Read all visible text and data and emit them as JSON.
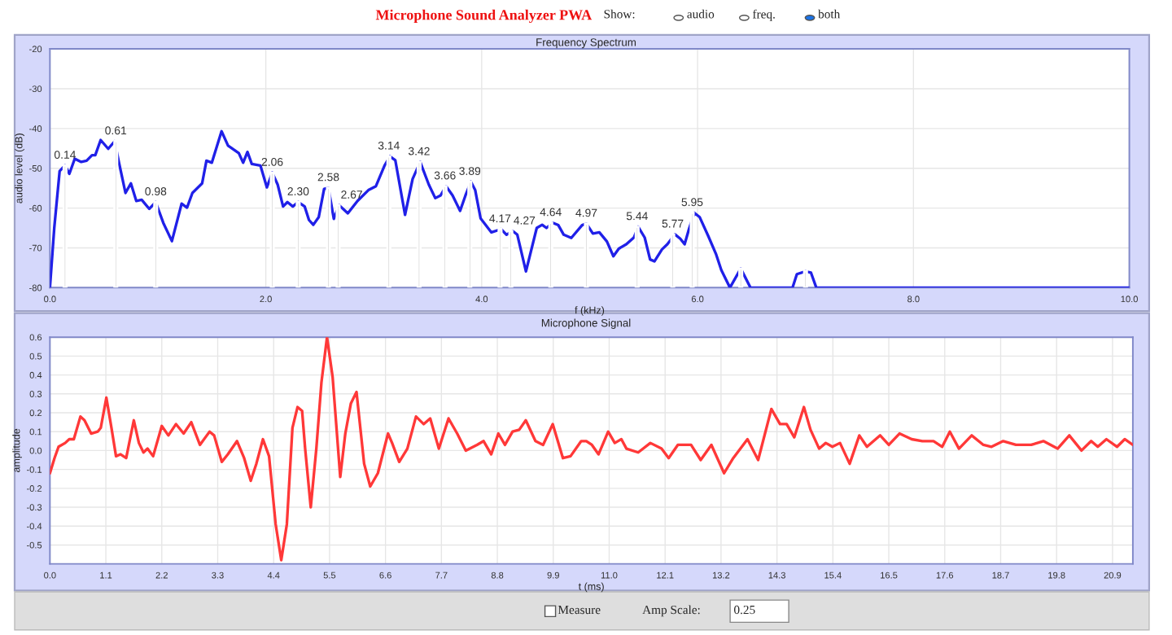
{
  "chart_data": [
    {
      "type": "line",
      "title": "Frequency Spectrum",
      "xlabel": "f (kHz)",
      "ylabel": "audio level (dB)",
      "grid": true,
      "annotations": [
        "Microphone Sound Analyzer PWA",
        "Show:",
        "audio",
        "freq.",
        "both",
        {
          "text": "0.14",
          "x": 0.14,
          "y": -49.3
        },
        {
          "text": "0.61",
          "x": 0.61,
          "y": -43.2
        },
        {
          "text": "0.98",
          "x": 0.98,
          "y": -58.5
        },
        {
          "text": "2.06",
          "x": 2.06,
          "y": -51.1
        },
        {
          "text": "2.30",
          "x": 2.3,
          "y": -58.5
        },
        {
          "text": "2.58",
          "x": 2.58,
          "y": -54.9
        },
        {
          "text": "2.67",
          "x": 2.67,
          "y": -59.3
        },
        {
          "text": "3.14",
          "x": 3.14,
          "y": -47
        },
        {
          "text": "3.42",
          "x": 3.42,
          "y": -48.4
        },
        {
          "text": "3.66",
          "x": 3.66,
          "y": -54.5
        },
        {
          "text": "3.89",
          "x": 3.89,
          "y": -53.4
        },
        {
          "text": "4.17",
          "x": 4.17,
          "y": -65.3
        },
        {
          "text": "4.27",
          "x": 4.27,
          "y": -65.8
        },
        {
          "text": "4.64",
          "x": 4.64,
          "y": -63.7
        },
        {
          "text": "4.97",
          "x": 4.97,
          "y": -63.9
        },
        {
          "text": "5.44",
          "x": 5.44,
          "y": -64.7
        },
        {
          "text": "5.77",
          "x": 5.77,
          "y": -66.6
        },
        {
          "text": "5.95",
          "x": 5.95,
          "y": -61.2
        }
      ],
      "xlim": [
        0,
        10
      ],
      "xticks": [
        {
          "value": 0,
          "label": "0.0"
        },
        {
          "value": 2,
          "label": "2.0"
        },
        {
          "value": 4,
          "label": "4.0"
        },
        {
          "value": 6,
          "label": "6.0"
        },
        {
          "value": 8,
          "label": "8.0"
        },
        {
          "value": 10,
          "label": "10.0"
        }
      ],
      "ylim": [
        -80,
        -20
      ],
      "yticks": [
        -80,
        -70,
        -60,
        -50,
        -40,
        -30,
        -20
      ],
      "series": [
        {
          "type": "bar",
          "color": "#c8c8c8",
          "x": [
            0.14,
            0.61,
            0.98,
            2.06,
            2.3,
            2.58,
            2.67,
            3.14,
            3.42,
            3.66,
            3.89,
            4.17,
            4.27,
            4.64,
            4.97,
            5.44,
            5.77,
            5.95,
            6.4,
            7.0
          ],
          "base": [
            -80,
            -80,
            -80,
            -80,
            -80,
            -80,
            -80,
            -80,
            -80,
            -80,
            -80,
            -80,
            -80,
            -80,
            -80,
            -80,
            -80,
            -80,
            -80,
            -80
          ],
          "values": [
            30.7,
            36.8,
            21.5,
            28.9,
            21.5,
            25.1,
            20.7,
            33,
            31.6,
            25.5,
            26.6,
            14.7,
            14.2,
            16.3,
            16.1,
            15.3,
            13.4,
            18.8,
            4.8,
            4.1
          ]
        },
        {
          "color": "#2020e8",
          "x": [
            0,
            0.04,
            0.09,
            0.14,
            0.18,
            0.23,
            0.29,
            0.34,
            0.39,
            0.42,
            0.47,
            0.54,
            0.6,
            0.64,
            0.7,
            0.75,
            0.8,
            0.85,
            0.92,
            0.98,
            1.05,
            1.13,
            1.22,
            1.27,
            1.32,
            1.41,
            1.45,
            1.5,
            1.59,
            1.65,
            1.75,
            1.79,
            1.83,
            1.87,
            1.95,
            2.01,
            2.06,
            2.11,
            2.16,
            2.2,
            2.25,
            2.3,
            2.36,
            2.4,
            2.44,
            2.49,
            2.54,
            2.58,
            2.63,
            2.68,
            2.76,
            2.85,
            2.95,
            3.02,
            3.1,
            3.15,
            3.2,
            3.29,
            3.36,
            3.43,
            3.51,
            3.57,
            3.62,
            3.67,
            3.73,
            3.8,
            3.85,
            3.9,
            3.94,
            3.99,
            4.09,
            4.18,
            4.23,
            4.29,
            4.33,
            4.41,
            4.51,
            4.56,
            4.6,
            4.66,
            4.71,
            4.76,
            4.83,
            4.93,
            4.97,
            5.03,
            5.09,
            5.16,
            5.22,
            5.27,
            5.34,
            5.41,
            5.45,
            5.51,
            5.56,
            5.6,
            5.67,
            5.72,
            5.79,
            5.84,
            5.88,
            5.92,
            5.97,
            6.02,
            6.1,
            6.17,
            6.22,
            6.3,
            6.4,
            6.49,
            6.88,
            6.92,
            7.0,
            7.05,
            7.1,
            10.0
          ],
          "values": [
            -80,
            -65,
            -50.7,
            -49.3,
            -51.4,
            -47.6,
            -48.4,
            -48.1,
            -46.7,
            -46.7,
            -42.9,
            -45.1,
            -43.2,
            -48.6,
            -56.2,
            -53.8,
            -58.2,
            -57.9,
            -60.2,
            -58.5,
            -63.7,
            -68.3,
            -58.9,
            -59.9,
            -56.2,
            -53.8,
            -48.1,
            -48.6,
            -40.7,
            -44.3,
            -46.2,
            -48.6,
            -45.9,
            -48.9,
            -49.3,
            -54.8,
            -51.1,
            -54.1,
            -59.6,
            -58.5,
            -59.6,
            -58.5,
            -59.6,
            -63,
            -64.2,
            -62.3,
            -55.2,
            -54.9,
            -62.7,
            -59.3,
            -61.3,
            -58.2,
            -55.5,
            -54.5,
            -49.3,
            -47,
            -48,
            -61.7,
            -52.7,
            -48.4,
            -54.1,
            -57.5,
            -56.8,
            -54.5,
            -56.8,
            -60.7,
            -56.8,
            -53.4,
            -55.5,
            -62.6,
            -66.1,
            -65.3,
            -66.7,
            -65.8,
            -66.7,
            -75.9,
            -65,
            -64.2,
            -65,
            -63.7,
            -64.3,
            -66.7,
            -67.5,
            -64.3,
            -63.9,
            -66.4,
            -66.1,
            -68.4,
            -72.1,
            -70.2,
            -69.1,
            -67.4,
            -64.7,
            -67.4,
            -72.9,
            -73.4,
            -70.4,
            -69.1,
            -66.6,
            -67.7,
            -69.1,
            -65.3,
            -61.2,
            -62.3,
            -67.1,
            -71.5,
            -75.6,
            -80,
            -75.2,
            -80,
            -80,
            -76.6,
            -75.9,
            -76.2,
            -80,
            -80
          ]
        }
      ]
    },
    {
      "type": "line",
      "title": "Microphone Signal",
      "xlabel": "t (ms)",
      "ylabel": "amplitude",
      "grid": true,
      "annotations": [
        "Measure",
        "Amp Scale:",
        "0.25"
      ],
      "xlim": [
        0,
        21.3
      ],
      "xticks": [
        {
          "value": 0,
          "label": "0.0"
        },
        1.1,
        2.2,
        3.3,
        4.4,
        5.5,
        6.6,
        7.7,
        8.8,
        9.9,
        {
          "value": 11,
          "label": "11.0"
        },
        12.1,
        13.2,
        14.3,
        15.4,
        16.5,
        17.6,
        18.7,
        19.8,
        20.9
      ],
      "ylim": [
        -0.6,
        0.6
      ],
      "yticks": [
        {
          "value": -0.6,
          "label": null
        },
        -0.5,
        -0.4,
        -0.3,
        -0.2,
        -0.1,
        {
          "value": 0,
          "label": "0.0"
        },
        0.1,
        0.2,
        0.3,
        0.4,
        0.5,
        0.6
      ],
      "series": [
        {
          "color": "#ff3838",
          "x": [
            0,
            0.09,
            0.17,
            0.3,
            0.38,
            0.47,
            0.6,
            0.68,
            0.81,
            0.94,
            1.0,
            1.11,
            1.21,
            1.3,
            1.39,
            1.5,
            1.65,
            1.75,
            1.84,
            1.92,
            2.03,
            2.2,
            2.33,
            2.48,
            2.63,
            2.78,
            2.95,
            3.14,
            3.23,
            3.38,
            3.5,
            3.68,
            3.82,
            3.95,
            4.06,
            4.19,
            4.31,
            4.44,
            4.55,
            4.66,
            4.77,
            4.87,
            4.96,
            5.02,
            5.13,
            5.24,
            5.34,
            5.45,
            5.56,
            5.71,
            5.81,
            5.92,
            6.03,
            6.18,
            6.3,
            6.45,
            6.65,
            6.73,
            6.87,
            7.03,
            7.2,
            7.35,
            7.48,
            7.65,
            7.84,
            8.01,
            8.18,
            8.4,
            8.53,
            8.68,
            8.82,
            8.95,
            9.1,
            9.23,
            9.36,
            9.55,
            9.7,
            9.89,
            10.09,
            10.24,
            10.45,
            10.55,
            10.66,
            10.79,
            10.98,
            11.11,
            11.24,
            11.34,
            11.57,
            11.81,
            12.03,
            12.17,
            12.35,
            12.61,
            12.8,
            13.01,
            13.26,
            13.44,
            13.72,
            13.93,
            14.19,
            14.36,
            14.49,
            14.64,
            14.83,
            14.96,
            15.13,
            15.26,
            15.39,
            15.54,
            15.73,
            15.92,
            16.07,
            16.33,
            16.5,
            16.71,
            16.95,
            17.16,
            17.38,
            17.55,
            17.7,
            17.88,
            18.13,
            18.36,
            18.52,
            18.75,
            19.0,
            19.3,
            19.54,
            19.82,
            20.05,
            20.29,
            20.48,
            20.61,
            20.78,
            20.99,
            21.14,
            21.3
          ],
          "values": [
            -0.12,
            -0.04,
            0.02,
            0.04,
            0.06,
            0.06,
            0.18,
            0.16,
            0.09,
            0.1,
            0.12,
            0.28,
            0.12,
            -0.03,
            -0.02,
            -0.04,
            0.16,
            0.04,
            -0.01,
            0.01,
            -0.03,
            0.13,
            0.08,
            0.14,
            0.09,
            0.15,
            0.03,
            0.1,
            0.08,
            -0.06,
            -0.02,
            0.05,
            -0.04,
            -0.16,
            -0.07,
            0.06,
            -0.03,
            -0.39,
            -0.58,
            -0.39,
            0.12,
            0.23,
            0.21,
            0.01,
            -0.3,
            0.01,
            0.36,
            0.6,
            0.39,
            -0.14,
            0.09,
            0.25,
            0.31,
            -0.07,
            -0.19,
            -0.12,
            0.09,
            0.04,
            -0.06,
            0.01,
            0.18,
            0.14,
            0.17,
            0.01,
            0.17,
            0.09,
            0.0,
            0.03,
            0.05,
            -0.02,
            0.09,
            0.03,
            0.1,
            0.11,
            0.16,
            0.05,
            0.03,
            0.14,
            -0.04,
            -0.03,
            0.05,
            0.05,
            0.03,
            -0.02,
            0.1,
            0.04,
            0.06,
            0.01,
            -0.01,
            0.04,
            0.01,
            -0.04,
            0.03,
            0.03,
            -0.05,
            0.03,
            -0.12,
            -0.04,
            0.06,
            -0.05,
            0.22,
            0.14,
            0.14,
            0.07,
            0.23,
            0.11,
            0.01,
            0.04,
            0.02,
            0.04,
            -0.07,
            0.08,
            0.02,
            0.08,
            0.03,
            0.09,
            0.06,
            0.05,
            0.05,
            0.02,
            0.1,
            0.01,
            0.08,
            0.03,
            0.02,
            0.05,
            0.03,
            0.03,
            0.05,
            0.01,
            0.08,
            0.0,
            0.05,
            0.02,
            0.06,
            0.02,
            0.06,
            0.03
          ]
        }
      ]
    }
  ]
}
